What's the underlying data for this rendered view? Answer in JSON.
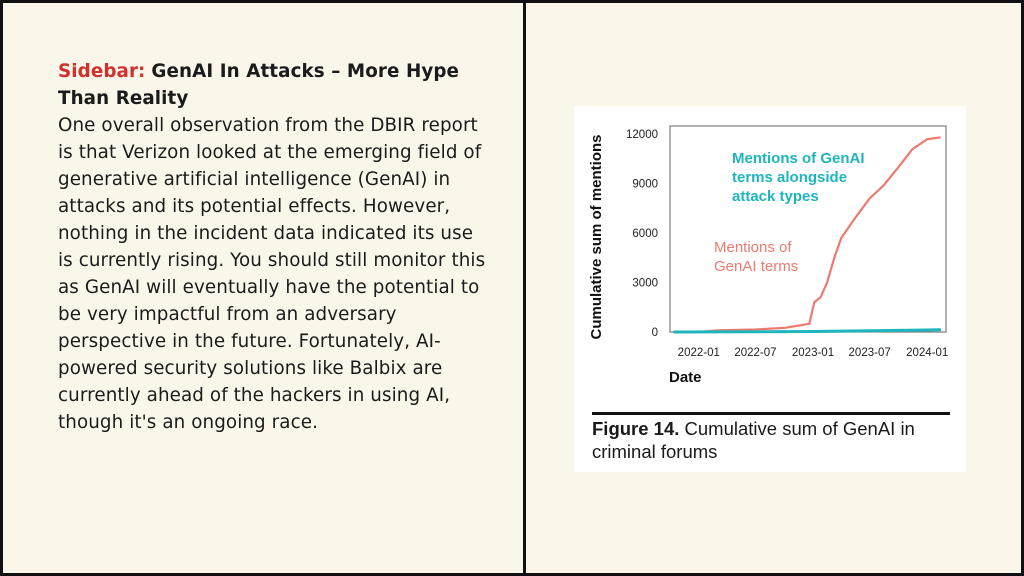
{
  "sidebar": {
    "label": "Sidebar:",
    "title": "GenAI In Attacks – More Hype Than Reality",
    "body": "One overall observation from the DBIR report is that Verizon looked at the emerging field of generative artificial intelligence (GenAI) in attacks and its potential effects. However, nothing in the incident data indicated its use is currently rising. You should still monitor this as GenAI will eventually have the potential to be very impactful from an adversary perspective in the future. Fortunately, AI-powered security solutions like Balbix are currently ahead of the hackers in using AI, though it's an ongoing race."
  },
  "figure": {
    "number": "Figure 14.",
    "caption": "Cumulative sum of GenAI in criminal forums"
  },
  "colors": {
    "genai_terms": "#ec7a6e",
    "attack_types": "#1fb5bd",
    "accent_red": "#d0312d"
  },
  "chart_data": {
    "type": "line",
    "xlabel": "Date",
    "ylabel": "Cumulative sum of mentions",
    "x_ticks": [
      "2022-01",
      "2022-07",
      "2023-01",
      "2023-07",
      "2024-01"
    ],
    "y_ticks": [
      0,
      3000,
      6000,
      9000,
      12000
    ],
    "xlim": [
      "2021-10",
      "2024-03"
    ],
    "ylim": [
      0,
      12500
    ],
    "grid": false,
    "series": [
      {
        "name": "Mentions of GenAI terms",
        "label_lines": [
          "Mentions of",
          "GenAI terms"
        ],
        "color": "#ec7a6e",
        "points": [
          [
            "2021-10-15",
            0
          ],
          [
            "2022-01-01",
            0
          ],
          [
            "2022-03-01",
            100
          ],
          [
            "2022-07-01",
            150
          ],
          [
            "2022-10-01",
            250
          ],
          [
            "2022-12-20",
            500
          ],
          [
            "2023-01-05",
            1800
          ],
          [
            "2023-01-25",
            2100
          ],
          [
            "2023-02-15",
            3000
          ],
          [
            "2023-03-10",
            4500
          ],
          [
            "2023-04-01",
            5700
          ],
          [
            "2023-05-15",
            6900
          ],
          [
            "2023-07-01",
            8100
          ],
          [
            "2023-08-15",
            8900
          ],
          [
            "2023-10-01",
            10000
          ],
          [
            "2023-11-15",
            11100
          ],
          [
            "2024-01-01",
            11700
          ],
          [
            "2024-02-10",
            11800
          ]
        ]
      },
      {
        "name": "Mentions of GenAI terms alongside attack types",
        "label_lines": [
          "Mentions of GenAI",
          "terms alongside",
          "attack types"
        ],
        "color": "#1fb5bd",
        "points": [
          [
            "2021-10-15",
            0
          ],
          [
            "2022-07-01",
            10
          ],
          [
            "2023-01-01",
            30
          ],
          [
            "2023-07-01",
            80
          ],
          [
            "2024-01-01",
            120
          ],
          [
            "2024-02-10",
            140
          ]
        ]
      }
    ]
  }
}
